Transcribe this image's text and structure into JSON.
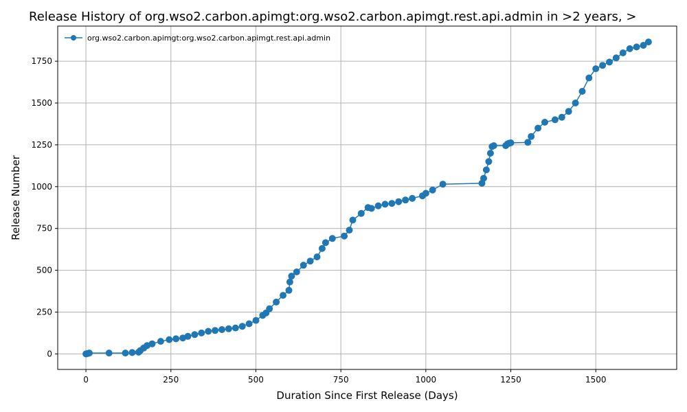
{
  "chart_data": {
    "type": "line",
    "title": "Release History of org.wso2.carbon.apimgt:org.wso2.carbon.apimgt.rest.api.admin in >2 years, >",
    "xlabel": "Duration Since First Release (Days)",
    "ylabel": "Release Number",
    "xlim": [
      -83,
      1738
    ],
    "ylim": [
      -93,
      1960
    ],
    "xticks": [
      0,
      250,
      500,
      750,
      1000,
      1250,
      1500
    ],
    "yticks": [
      0,
      250,
      500,
      750,
      1000,
      1250,
      1500,
      1750
    ],
    "grid": true,
    "legend_position": "top-left",
    "color": "#1f77b4",
    "series": [
      {
        "name": "org.wso2.carbon.apimgt:org.wso2.carbon.apimgt.rest.api.admin",
        "x": [
          0,
          5,
          10,
          68,
          116,
          136,
          155,
          160,
          170,
          180,
          195,
          220,
          245,
          265,
          285,
          300,
          320,
          340,
          360,
          380,
          400,
          420,
          440,
          460,
          480,
          500,
          520,
          530,
          540,
          560,
          580,
          597,
          600,
          605,
          620,
          640,
          660,
          680,
          695,
          705,
          725,
          760,
          775,
          785,
          810,
          830,
          840,
          860,
          880,
          900,
          920,
          940,
          960,
          990,
          1000,
          1020,
          1050,
          1165,
          1170,
          1178,
          1185,
          1190,
          1195,
          1200,
          1235,
          1240,
          1245,
          1250,
          1300,
          1310,
          1330,
          1350,
          1380,
          1400,
          1420,
          1440,
          1460,
          1480,
          1500,
          1520,
          1540,
          1560,
          1580,
          1600,
          1620,
          1640,
          1655
        ],
        "y": [
          0,
          2,
          5,
          5,
          5,
          8,
          10,
          20,
          35,
          50,
          60,
          75,
          85,
          90,
          95,
          105,
          115,
          125,
          135,
          140,
          145,
          150,
          155,
          165,
          180,
          200,
          230,
          245,
          270,
          310,
          350,
          380,
          430,
          465,
          490,
          530,
          555,
          580,
          630,
          665,
          690,
          705,
          740,
          800,
          840,
          875,
          870,
          885,
          895,
          900,
          910,
          920,
          930,
          945,
          960,
          980,
          1015,
          1020,
          1050,
          1100,
          1150,
          1200,
          1240,
          1245,
          1245,
          1255,
          1260,
          1262,
          1265,
          1300,
          1350,
          1385,
          1400,
          1415,
          1450,
          1500,
          1570,
          1650,
          1705,
          1725,
          1745,
          1770,
          1800,
          1825,
          1835,
          1845,
          1865
        ]
      }
    ]
  }
}
